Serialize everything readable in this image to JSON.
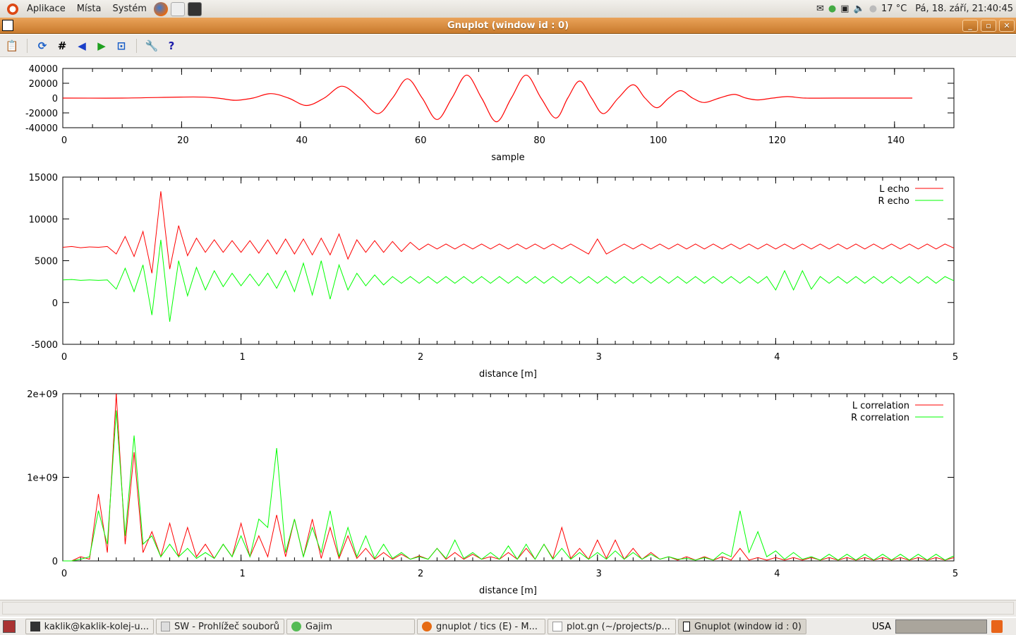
{
  "top_panel": {
    "menus": [
      "Aplikace",
      "Místa",
      "Systém"
    ],
    "temperature": "17 °C",
    "clock": "Pá, 18. září, 21:40:45"
  },
  "window": {
    "title": "Gnuplot (window id : 0)",
    "minimize": "_",
    "maximize": "▫",
    "close": "✕"
  },
  "toolbar": [
    {
      "name": "copy-to-clipboard",
      "glyph": "📋"
    },
    {
      "name": "replot",
      "glyph": "⟳"
    },
    {
      "name": "grid",
      "glyph": "#"
    },
    {
      "name": "zoom-previous",
      "glyph": "◀"
    },
    {
      "name": "zoom-next",
      "glyph": "▶"
    },
    {
      "name": "autoscale",
      "glyph": "⊡"
    },
    {
      "name": "options",
      "glyph": "🔧"
    },
    {
      "name": "help",
      "glyph": "?"
    }
  ],
  "chart_data": [
    {
      "type": "line",
      "xlabel": "sample",
      "xlim": [
        0,
        150
      ],
      "ylim": [
        -40000,
        40000
      ],
      "xticks": [
        "0",
        "20",
        "40",
        "60",
        "80",
        "100",
        "120",
        "140"
      ],
      "yticks": [
        "40000",
        "20000",
        "0",
        "-20000",
        "-40000"
      ],
      "series": [
        {
          "color": "#ff0000",
          "points": [
            [
              0,
              0
            ],
            [
              10,
              0
            ],
            [
              22,
              1500
            ],
            [
              26,
              0
            ],
            [
              29,
              -3000
            ],
            [
              32,
              0
            ],
            [
              35,
              6000
            ],
            [
              38,
              0
            ],
            [
              41,
              -10000
            ],
            [
              44,
              0
            ],
            [
              47,
              16000
            ],
            [
              50,
              0
            ],
            [
              53,
              -21000
            ],
            [
              55.5,
              0
            ],
            [
              58,
              26000
            ],
            [
              60.5,
              0
            ],
            [
              63,
              -29000
            ],
            [
              65.5,
              0
            ],
            [
              68,
              31000
            ],
            [
              70.5,
              0
            ],
            [
              73,
              -32000
            ],
            [
              75.5,
              0
            ],
            [
              78,
              31000
            ],
            [
              80.5,
              0
            ],
            [
              83,
              -27000
            ],
            [
              85,
              0
            ],
            [
              87,
              23000
            ],
            [
              89,
              0
            ],
            [
              91,
              -21000
            ],
            [
              93.5,
              0
            ],
            [
              96,
              18000
            ],
            [
              98,
              0
            ],
            [
              100,
              -13000
            ],
            [
              102,
              0
            ],
            [
              104,
              10000
            ],
            [
              106,
              0
            ],
            [
              108,
              -6000
            ],
            [
              110.5,
              0
            ],
            [
              113,
              5000
            ],
            [
              115,
              0
            ],
            [
              117,
              -2500
            ],
            [
              119.5,
              0
            ],
            [
              122,
              2000
            ],
            [
              125,
              0
            ],
            [
              130,
              0
            ],
            [
              143,
              0
            ]
          ]
        }
      ]
    },
    {
      "type": "line",
      "xlabel": "distance [m]",
      "xlim": [
        0,
        5
      ],
      "ylim": [
        -5000,
        15000
      ],
      "x_step": 0.05,
      "xticks": [
        "0",
        "1",
        "2",
        "3",
        "4",
        "5"
      ],
      "yticks": [
        "15000",
        "10000",
        "5000",
        "0",
        "-5000"
      ],
      "legend": "top-right",
      "series": [
        {
          "name": "L echo",
          "color": "#ff0000",
          "values": [
            6600,
            6700,
            6550,
            6650,
            6600,
            6700,
            5800,
            7900,
            5500,
            8500,
            3500,
            13300,
            4000,
            9200,
            5600,
            7700,
            6000,
            7500,
            6000,
            7400,
            6000,
            7400,
            5900,
            7500,
            5800,
            7600,
            5800,
            7600,
            5700,
            7700,
            5700,
            8200,
            5200,
            7500,
            6000,
            7400,
            6000,
            7300,
            6100,
            7200,
            6300,
            7000,
            6400,
            7000,
            6400,
            7000,
            6400,
            7000,
            6400,
            7000,
            6400,
            7000,
            6400,
            7000,
            6400,
            7000,
            6400,
            7000,
            6400,
            5800,
            7600,
            5800,
            6400,
            7000,
            6400,
            7000,
            6400,
            7000,
            6400,
            7000,
            6400,
            7000,
            6400,
            7000,
            6400,
            7000,
            6400,
            7000,
            6400,
            7000,
            6400,
            7000,
            6400,
            7000,
            6400,
            7000,
            6400,
            7000,
            6400,
            7000,
            6400,
            7000,
            6400,
            7000,
            6400,
            7000,
            6400,
            7000,
            6400,
            7000,
            6500
          ]
        },
        {
          "name": "R echo",
          "color": "#00ff00",
          "values": [
            2700,
            2750,
            2650,
            2700,
            2650,
            2700,
            1600,
            4100,
            1300,
            4500,
            -1500,
            7500,
            -2300,
            5000,
            800,
            4200,
            1500,
            3800,
            1900,
            3500,
            2000,
            3400,
            2000,
            3500,
            1700,
            3800,
            1300,
            4700,
            900,
            5000,
            400,
            4500,
            1500,
            3500,
            2000,
            3300,
            2100,
            3100,
            2300,
            3100,
            2300,
            3100,
            2300,
            3100,
            2300,
            3100,
            2300,
            3100,
            2300,
            3100,
            2300,
            3100,
            2300,
            3100,
            2300,
            3100,
            2300,
            3100,
            2300,
            3100,
            2300,
            3100,
            2300,
            3100,
            2300,
            3100,
            2300,
            3100,
            2300,
            3100,
            2300,
            3100,
            2300,
            3100,
            2300,
            3100,
            2300,
            3100,
            2300,
            3100,
            1500,
            3800,
            1500,
            3800,
            1600,
            3100,
            2300,
            3100,
            2300,
            3100,
            2300,
            3100,
            2300,
            3100,
            2300,
            3100,
            2300,
            3100,
            2300,
            3100,
            2600
          ]
        }
      ]
    },
    {
      "type": "line",
      "xlabel": "distance [m]",
      "xlim": [
        0,
        5
      ],
      "ylim": [
        0,
        2000000000.0
      ],
      "x_step": 0.05,
      "xticks": [
        "0",
        "1",
        "2",
        "3",
        "4",
        "5"
      ],
      "yticks": [
        "2e+09",
        "1e+09",
        "0"
      ],
      "legend": "top-right",
      "series": [
        {
          "name": "L correlation",
          "color": "#ff0000",
          "values": [
            0,
            0,
            50000000.0,
            20000000.0,
            800000000.0,
            100000000.0,
            2000000000.0,
            200000000.0,
            1300000000.0,
            100000000.0,
            350000000.0,
            50000000.0,
            450000000.0,
            50000000.0,
            400000000.0,
            50000000.0,
            200000000.0,
            30000000.0,
            200000000.0,
            50000000.0,
            450000000.0,
            50000000.0,
            300000000.0,
            50000000.0,
            550000000.0,
            50000000.0,
            500000000.0,
            50000000.0,
            500000000.0,
            30000000.0,
            400000000.0,
            30000000.0,
            300000000.0,
            30000000.0,
            150000000.0,
            20000000.0,
            100000000.0,
            20000000.0,
            80000000.0,
            20000000.0,
            60000000.0,
            20000000.0,
            150000000.0,
            20000000.0,
            100000000.0,
            20000000.0,
            80000000.0,
            20000000.0,
            50000000.0,
            20000000.0,
            100000000.0,
            20000000.0,
            150000000.0,
            20000000.0,
            200000000.0,
            30000000.0,
            400000000.0,
            30000000.0,
            150000000.0,
            20000000.0,
            250000000.0,
            30000000.0,
            250000000.0,
            20000000.0,
            150000000.0,
            20000000.0,
            100000000.0,
            20000000.0,
            50000000.0,
            10000000.0,
            50000000.0,
            10000000.0,
            50000000.0,
            10000000.0,
            50000000.0,
            10000000.0,
            150000000.0,
            10000000.0,
            40000000.0,
            10000000.0,
            40000000.0,
            10000000.0,
            40000000.0,
            10000000.0,
            40000000.0,
            10000000.0,
            40000000.0,
            10000000.0,
            40000000.0,
            10000000.0,
            40000000.0,
            10000000.0,
            40000000.0,
            10000000.0,
            40000000.0,
            10000000.0,
            40000000.0,
            10000000.0,
            40000000.0,
            10000000.0,
            40000000.0
          ]
        },
        {
          "name": "R correlation",
          "color": "#00ff00",
          "values": [
            0,
            0,
            20000000.0,
            50000000.0,
            600000000.0,
            200000000.0,
            1800000000.0,
            300000000.0,
            1500000000.0,
            200000000.0,
            300000000.0,
            50000000.0,
            200000000.0,
            50000000.0,
            150000000.0,
            30000000.0,
            100000000.0,
            30000000.0,
            200000000.0,
            50000000.0,
            300000000.0,
            50000000.0,
            500000000.0,
            400000000.0,
            1350000000.0,
            100000000.0,
            500000000.0,
            50000000.0,
            400000000.0,
            100000000.0,
            600000000.0,
            50000000.0,
            400000000.0,
            50000000.0,
            300000000.0,
            30000000.0,
            200000000.0,
            30000000.0,
            100000000.0,
            20000000.0,
            50000000.0,
            20000000.0,
            150000000.0,
            30000000.0,
            250000000.0,
            30000000.0,
            100000000.0,
            20000000.0,
            100000000.0,
            20000000.0,
            180000000.0,
            20000000.0,
            200000000.0,
            20000000.0,
            200000000.0,
            20000000.0,
            150000000.0,
            20000000.0,
            100000000.0,
            20000000.0,
            100000000.0,
            20000000.0,
            120000000.0,
            20000000.0,
            100000000.0,
            20000000.0,
            80000000.0,
            20000000.0,
            50000000.0,
            20000000.0,
            30000000.0,
            10000000.0,
            40000000.0,
            10000000.0,
            100000000.0,
            50000000.0,
            600000000.0,
            100000000.0,
            350000000.0,
            50000000.0,
            120000000.0,
            20000000.0,
            100000000.0,
            20000000.0,
            50000000.0,
            10000000.0,
            80000000.0,
            10000000.0,
            80000000.0,
            10000000.0,
            80000000.0,
            10000000.0,
            80000000.0,
            10000000.0,
            80000000.0,
            10000000.0,
            80000000.0,
            10000000.0,
            80000000.0,
            10000000.0,
            60000000.0
          ]
        }
      ]
    }
  ],
  "taskbar": {
    "items": [
      {
        "label": "kaklik@kaklik-kolej-u...",
        "icon": "terminal"
      },
      {
        "label": "SW - Prohlížeč souborů",
        "icon": "file-browser"
      },
      {
        "label": "Gajim",
        "icon": "gajim"
      },
      {
        "label": "gnuplot / tics (E) - M...",
        "icon": "firefox"
      },
      {
        "label": "plot.gn (~/projects/p...",
        "icon": "text-editor"
      },
      {
        "label": "Gnuplot (window id : 0)",
        "icon": "gnuplot",
        "active": true
      }
    ],
    "keyboard": "USA"
  }
}
